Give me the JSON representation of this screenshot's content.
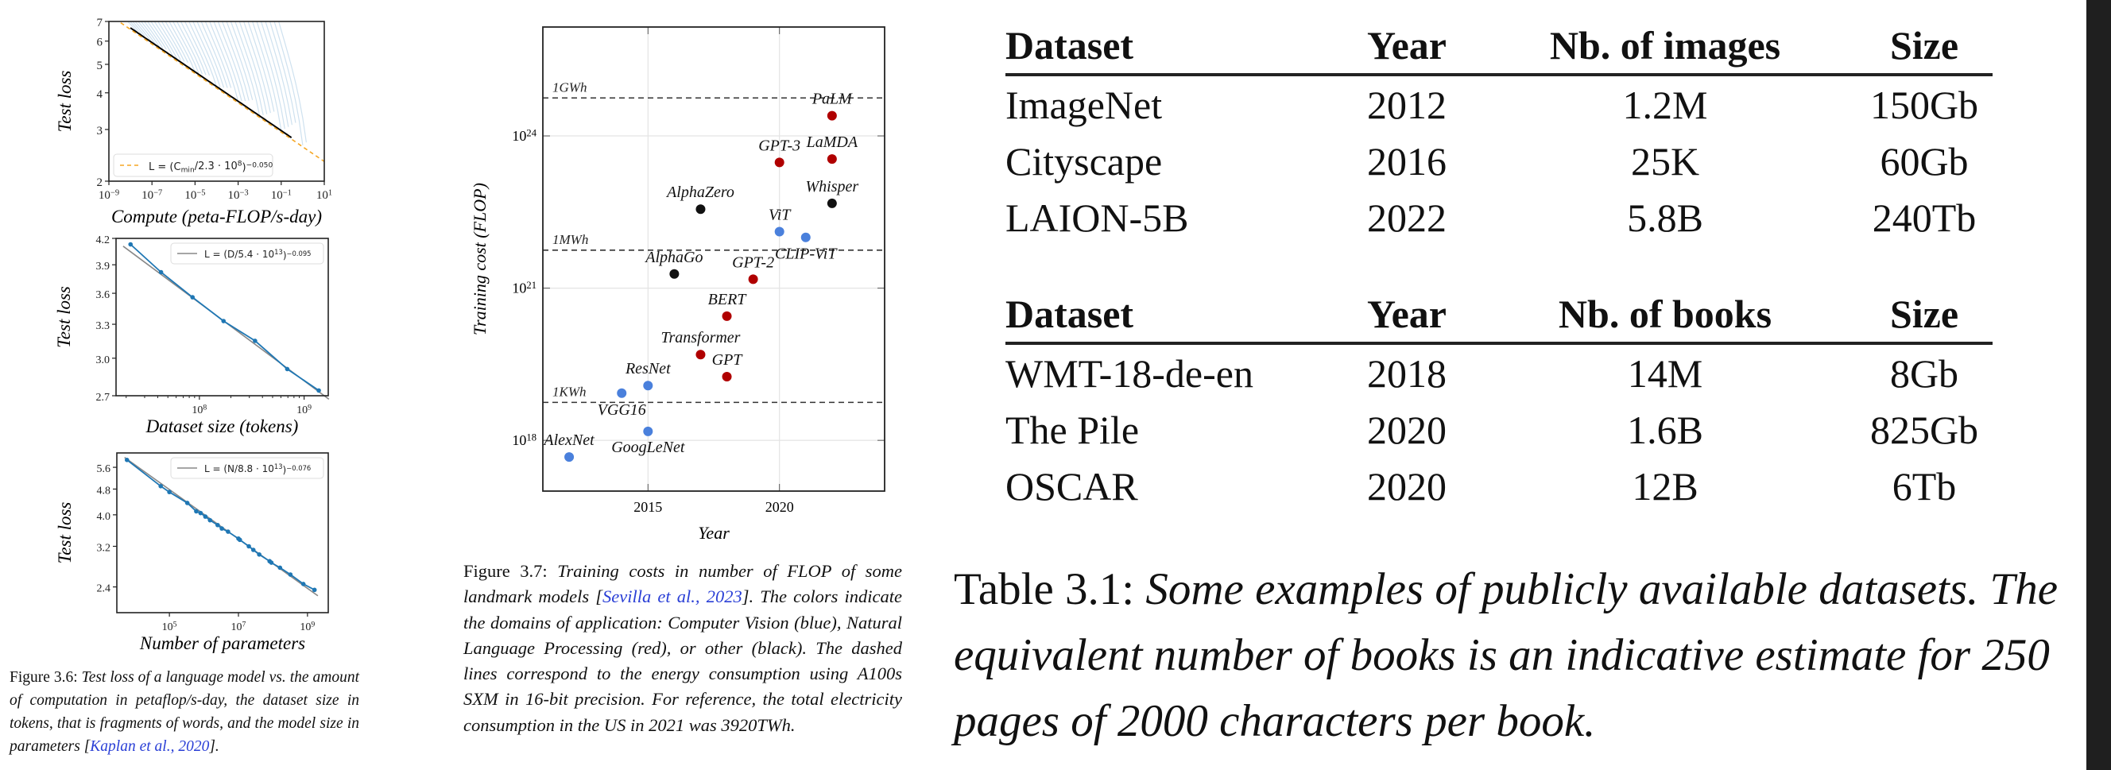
{
  "colors": {
    "cv_blue": "#4a80dc",
    "nlp_red": "#b00000",
    "other_black": "#111111",
    "curve_blue": "#1f77b4",
    "fit_orange": "#f5a623",
    "fit_gray": "#888888",
    "cite_blue": "#2a3fd6"
  },
  "figure_3_6": {
    "caption": {
      "label": "Figure 3.6:",
      "text": " Test loss of a language model vs. the amount of computation in petaflop/s-day, the dataset size in tokens, that is fragments of words, and the model size in parameters [",
      "cite": "Kaplan et al., 2020",
      "end": "]."
    }
  },
  "figure_3_7": {
    "caption": {
      "label": "Figure 3.7:",
      "text": " Training costs in number of FLOP of some landmark models [",
      "cite": "Sevilla et al., 2023",
      "end": "]. The colors indicate the domains of application: Computer Vision (blue), Natural Language Processing (red), or other (black). The dashed lines correspond to the energy consumption using A100s SXM in 16-bit precision. For reference, the total electricity consumption in the US in 2021 was 3920TWh."
    }
  },
  "table_3_1": {
    "caption": {
      "label": "Table 3.1:",
      "text": " Some examples of publicly available datasets. The equivalent number of books is an indicative estimate for 250 pages of 2000 characters per book."
    },
    "images": {
      "headers": [
        "Dataset",
        "Year",
        "Nb. of images",
        "Size"
      ],
      "rows": [
        [
          "ImageNet",
          "2012",
          "1.2M",
          "150Gb"
        ],
        [
          "Cityscape",
          "2016",
          "25K",
          "60Gb"
        ],
        [
          "LAION-5B",
          "2022",
          "5.8B",
          "240Tb"
        ]
      ]
    },
    "books": {
      "headers": [
        "Dataset",
        "Year",
        "Nb. of books",
        "Size"
      ],
      "rows": [
        [
          "WMT-18-de-en",
          "2018",
          "14M",
          "8Gb"
        ],
        [
          "The Pile",
          "2020",
          "1.6B",
          "825Gb"
        ],
        [
          "OSCAR",
          "2020",
          "12B",
          "6Tb"
        ]
      ]
    }
  },
  "chart_data": [
    {
      "type": "line",
      "xscale": "log",
      "yscale": "log",
      "xlabel": "Compute (peta-FLOP/s-day)",
      "ylabel": "Test loss",
      "xlim": [
        1e-09,
        10
      ],
      "ylim": [
        2,
        7
      ],
      "xticks": [
        1e-09,
        1e-07,
        1e-05,
        0.001,
        0.1,
        10
      ],
      "xtick_labels": [
        "10^{−9}",
        "10^{−7}",
        "10^{−5}",
        "10^{−3}",
        "10^{−1}",
        "10^{1}"
      ],
      "yticks": [
        2,
        3,
        4,
        5,
        6,
        7
      ],
      "ytick_labels": [
        "2",
        "3",
        "4",
        "5",
        "6",
        "7"
      ],
      "legend": "L = (C_{min}/2.3 · 10^{8})^{−0.050}",
      "legend_position": "lower-left",
      "fit": {
        "scale": 230000000.0,
        "exponent": -0.05,
        "style": "dashed",
        "color": "#f5a623"
      },
      "frontier_range": [
        1e-08,
        0.3
      ],
      "series_note_count": 40
    },
    {
      "type": "line",
      "xscale": "log",
      "yscale": "log",
      "xlabel": "Dataset size (tokens)",
      "ylabel": "Test loss",
      "xlim": [
        16000000.0,
        1700000000.0
      ],
      "ylim": [
        2.7,
        4.2
      ],
      "xticks": [
        100000000.0,
        1000000000.0
      ],
      "xtick_labels": [
        "10^{8}",
        "10^{9}"
      ],
      "yticks": [
        2.7,
        3.0,
        3.3,
        3.6,
        3.9,
        4.2
      ],
      "ytick_labels": [
        "2.7",
        "3.0",
        "3.3",
        "3.6",
        "3.9",
        "4.2"
      ],
      "legend": "L = (D/5.4 · 10^{13})^{−0.095}",
      "legend_position": "upper-right",
      "fit": {
        "scale": 54000000000000.0,
        "exponent": -0.095,
        "color": "#888888"
      },
      "x": [
        22000000.0,
        43000000.0,
        86000000.0,
        170000000.0,
        340000000.0,
        690000000.0,
        1380000000.0
      ],
      "y": [
        4.13,
        3.82,
        3.56,
        3.33,
        3.15,
        2.91,
        2.74
      ]
    },
    {
      "type": "line",
      "xscale": "log",
      "yscale": "log",
      "xlabel": "Number of parameters",
      "ylabel": "Test loss",
      "xlim": [
        3000.0,
        4000000000.0
      ],
      "ylim": [
        2.0,
        6.2
      ],
      "xticks": [
        100000.0,
        10000000.0,
        1000000000.0
      ],
      "xtick_labels": [
        "10^{5}",
        "10^{7}",
        "10^{9}"
      ],
      "yticks": [
        2.4,
        3.2,
        4.0,
        4.8,
        5.6
      ],
      "ytick_labels": [
        "2.4",
        "3.2",
        "4.0",
        "4.8",
        "5.6"
      ],
      "legend": "L = (N/8.8 · 10^{13})^{−0.076}",
      "legend_position": "upper-right",
      "fit": {
        "scale": 88000000000000.0,
        "exponent": -0.076,
        "color": "#888888"
      },
      "x": [
        5900.0,
        56000.0,
        100000.0,
        330000.0,
        600000.0,
        800000.0,
        1100000.0,
        1500000.0,
        2500000.0,
        3300000.0,
        5000000.0,
        10000000.0,
        11000000.0,
        20000000.0,
        27000000.0,
        40000000.0,
        80000000.0,
        90000000.0,
        160000000.0,
        320000000.0,
        760000000.0,
        1600000000.0
      ],
      "y": [
        5.9,
        4.9,
        4.7,
        4.35,
        4.1,
        4.05,
        3.95,
        3.85,
        3.72,
        3.63,
        3.55,
        3.38,
        3.35,
        3.2,
        3.12,
        3.02,
        2.88,
        2.85,
        2.75,
        2.62,
        2.45,
        2.35
      ]
    },
    {
      "type": "scatter",
      "yscale": "log",
      "xlabel": "Year",
      "ylabel": "Training cost (FLOP)",
      "xlim": [
        2011,
        2024
      ],
      "ylim": [
        1e+17,
        1.4e+26
      ],
      "xticks": [
        2015,
        2020
      ],
      "xtick_labels": [
        "2015",
        "2020"
      ],
      "yticks": [
        1e+18,
        1e+21,
        1e+24
      ],
      "ytick_labels": [
        "10^{18}",
        "10^{21}",
        "10^{24}"
      ],
      "grid": true,
      "energy_lines": [
        {
          "label": "1KWh",
          "flop": 5.6e+18
        },
        {
          "label": "1MWh",
          "flop": 5.6e+21
        },
        {
          "label": "1GWh",
          "flop": 5.6e+24
        }
      ],
      "points": [
        {
          "name": "PaLM",
          "year": 2022,
          "flop": 2.5e+24,
          "domain": "nlp"
        },
        {
          "name": "GPT-3",
          "year": 2020,
          "flop": 3e+23,
          "domain": "nlp"
        },
        {
          "name": "LaMDA",
          "year": 2022,
          "flop": 3.5e+23,
          "domain": "nlp"
        },
        {
          "name": "Whisper",
          "year": 2022,
          "flop": 4.7e+22,
          "domain": "other"
        },
        {
          "name": "AlphaZero",
          "year": 2017,
          "flop": 3.6e+22,
          "domain": "other"
        },
        {
          "name": "ViT",
          "year": 2020,
          "flop": 1.3e+22,
          "domain": "cv"
        },
        {
          "name": "CLIP-ViT",
          "year": 2021,
          "flop": 1e+22,
          "domain": "cv"
        },
        {
          "name": "AlphaGo",
          "year": 2016,
          "flop": 1.9e+21,
          "domain": "other"
        },
        {
          "name": "GPT-2",
          "year": 2019,
          "flop": 1.5e+21,
          "domain": "nlp"
        },
        {
          "name": "BERT",
          "year": 2018,
          "flop": 2.8e+20,
          "domain": "nlp"
        },
        {
          "name": "Transformer",
          "year": 2017,
          "flop": 4.9e+19,
          "domain": "nlp"
        },
        {
          "name": "GPT",
          "year": 2018,
          "flop": 1.8e+19,
          "domain": "nlp"
        },
        {
          "name": "ResNet",
          "year": 2015,
          "flop": 1.2e+19,
          "domain": "cv"
        },
        {
          "name": "VGG16",
          "year": 2014,
          "flop": 8.5e+18,
          "domain": "cv"
        },
        {
          "name": "GoogLeNet",
          "year": 2015,
          "flop": 1.5e+18,
          "domain": "cv"
        },
        {
          "name": "AlexNet",
          "year": 2012,
          "flop": 4.7e+17,
          "domain": "cv"
        }
      ]
    }
  ]
}
